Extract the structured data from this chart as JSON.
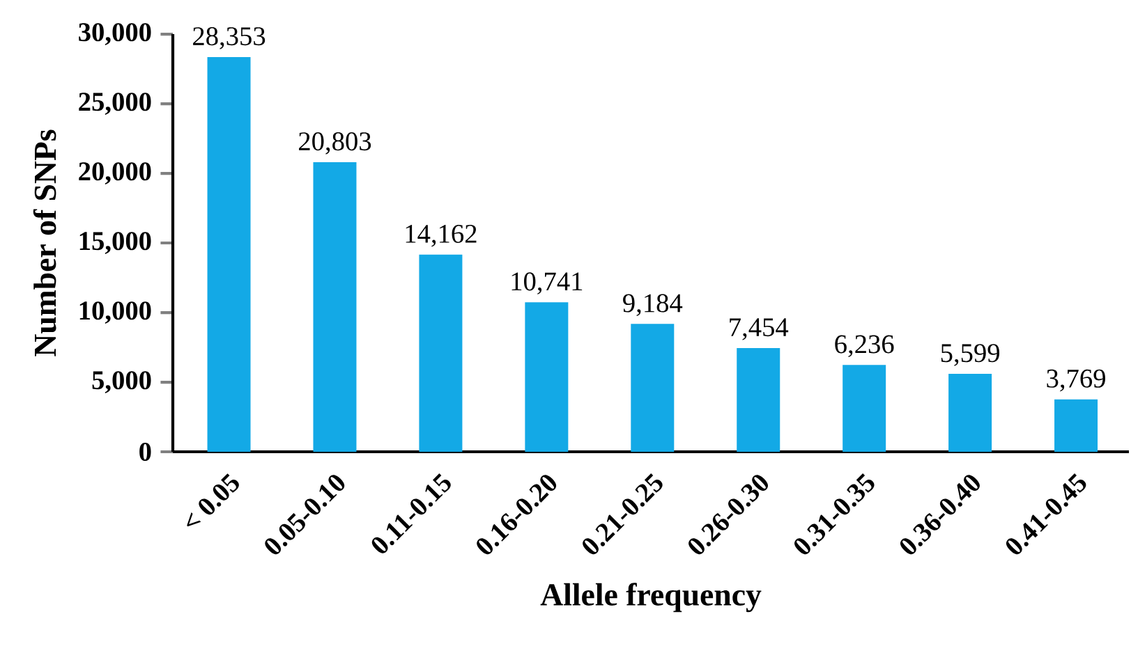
{
  "chart_data": {
    "type": "bar",
    "xlabel": "Allele frequency",
    "ylabel": "Number of SNPs",
    "categories": [
      "< 0.05",
      "0.05-0.10",
      "0.11-0.15",
      "0.16-0.20",
      "0.21-0.25",
      "0.26-0.30",
      "0.31-0.35",
      "0.36-0.40",
      "0.41-0.45"
    ],
    "values": [
      28353,
      20803,
      14162,
      10741,
      9184,
      7454,
      6236,
      5599,
      3769
    ],
    "value_labels": [
      "28,353",
      "20,803",
      "14,162",
      "10,741",
      "9,184",
      "7,454",
      "6,236",
      "5,599",
      "3,769"
    ],
    "color": "#13a9e6",
    "ylim": [
      0,
      30000
    ],
    "yticks": [
      {
        "value": 0,
        "label": "0"
      },
      {
        "value": 5000,
        "label": "5,000"
      },
      {
        "value": 10000,
        "label": "10,000"
      },
      {
        "value": 15000,
        "label": "15,000"
      },
      {
        "value": 20000,
        "label": "20,000"
      },
      {
        "value": 25000,
        "label": "25,000"
      },
      {
        "value": 30000,
        "label": "30,000"
      }
    ],
    "grid": false
  }
}
